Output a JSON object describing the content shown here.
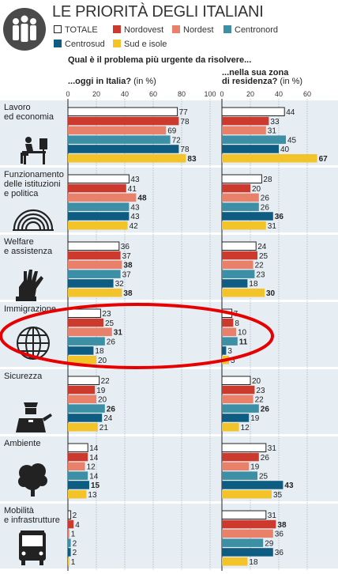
{
  "title": "LE PRIORITÀ DEGLI ITALIANI",
  "question": "Qual è il problema più urgente da risolvere...",
  "left_panel": {
    "title": "...oggi in Italia?",
    "unit": "(in %)"
  },
  "right_panel": {
    "title_line1": "...nella sua zona",
    "title_line2": "di residenza?",
    "unit": "(in %)"
  },
  "colors": {
    "TOTALE": "#ffffff",
    "Nordovest": "#cc3a2e",
    "Nordest": "#e8806a",
    "Centronord": "#3d8fa5",
    "Centrosud": "#0e5c82",
    "Sud e isole": "#f2c42a",
    "band": "#e6edf3",
    "annotation": "#e60000"
  },
  "chart_data": {
    "type": "bar",
    "orientation": "horizontal",
    "categories": [
      "Lavoro ed economia",
      "Funzionamento delle istituzioni e politica",
      "Welfare e assistenza",
      "Immigrazione",
      "Sicurezza",
      "Ambiente",
      "Mobilità e infrastrutture"
    ],
    "category_lines": [
      [
        "Lavoro",
        "ed economia"
      ],
      [
        "Funzionamento",
        "delle istituzioni",
        "e politica"
      ],
      [
        "Welfare",
        "e assistenza"
      ],
      [
        "Immigrazione"
      ],
      [
        "Sicurezza"
      ],
      [
        "Ambiente"
      ],
      [
        "Mobilità",
        "e infrastrutture"
      ]
    ],
    "category_icons": [
      "desk-worker-icon",
      "parliament-icon",
      "hand-icon",
      "globe-icon",
      "police-officer-icon",
      "tree-icon",
      "bus-icon"
    ],
    "series_names": [
      "TOTALE",
      "Nordovest",
      "Nordest",
      "Centronord",
      "Centrosud",
      "Sud e isole"
    ],
    "panels": [
      {
        "title": "...oggi in Italia? (in %)",
        "xlim": [
          0,
          100
        ],
        "ticks": [
          0,
          20,
          40,
          60,
          80,
          100
        ],
        "values": [
          [
            77,
            78,
            69,
            72,
            78,
            83
          ],
          [
            43,
            41,
            48,
            43,
            43,
            42
          ],
          [
            36,
            37,
            38,
            37,
            32,
            38
          ],
          [
            23,
            25,
            31,
            26,
            18,
            20
          ],
          [
            22,
            19,
            20,
            26,
            24,
            21
          ],
          [
            14,
            14,
            12,
            14,
            15,
            13
          ],
          [
            2,
            4,
            1,
            2,
            2,
            1
          ]
        ],
        "bold": [
          [
            5
          ],
          [
            2
          ],
          [
            2,
            5
          ],
          [
            2
          ],
          [
            3
          ],
          [
            4
          ],
          []
        ]
      },
      {
        "title": "...nella sua zona di residenza? (in %)",
        "xlim": [
          0,
          70
        ],
        "ticks": [
          0,
          20,
          40,
          60
        ],
        "values": [
          [
            44,
            33,
            31,
            45,
            40,
            67
          ],
          [
            28,
            20,
            26,
            26,
            36,
            31
          ],
          [
            24,
            25,
            22,
            23,
            18,
            30
          ],
          [
            7,
            8,
            10,
            11,
            3,
            5
          ],
          [
            20,
            23,
            22,
            26,
            19,
            12
          ],
          [
            31,
            26,
            19,
            25,
            43,
            35
          ],
          [
            31,
            38,
            36,
            29,
            36,
            18
          ]
        ],
        "bold": [
          [
            5
          ],
          [
            4
          ],
          [
            5
          ],
          [
            3
          ],
          [
            3
          ],
          [
            4
          ],
          [
            1
          ]
        ]
      }
    ],
    "grid": true,
    "legend_position": "top"
  }
}
